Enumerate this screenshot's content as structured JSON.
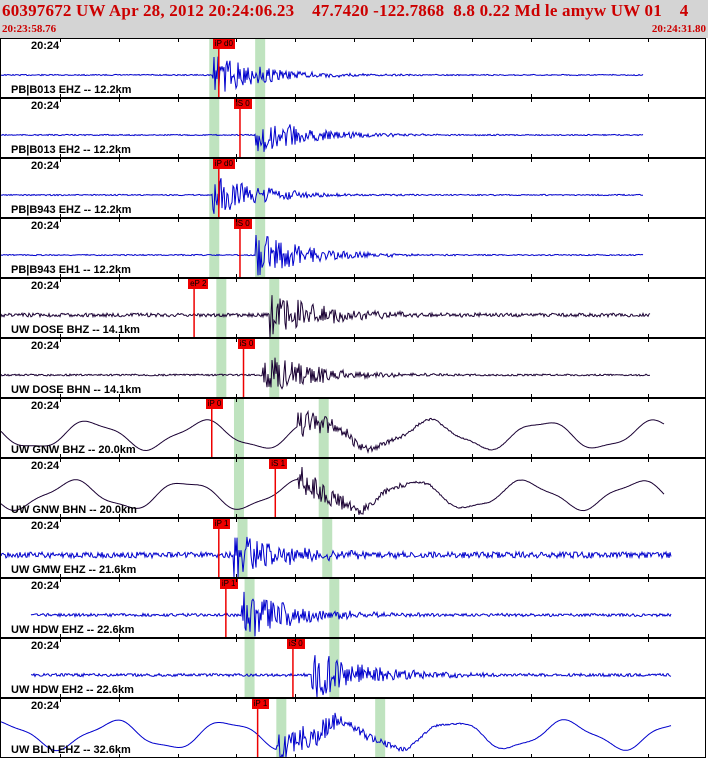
{
  "header": {
    "title": "60397672 UW Apr 28, 2012 20:24:06.23    47.7420 -122.7868  8.8 0.22 Md le amyw UW 01    4",
    "start_time": "20:23:58.76",
    "end_time": "20:24:31.80"
  },
  "colors": {
    "blue_trace": "#0000cc",
    "dark_trace": "#1a0033",
    "pick": "#ee0000",
    "window": "#bfe3bf"
  },
  "traces": [
    {
      "time": "20:24",
      "label": "PB|B013 EHZ -- 12.2km",
      "pick_label": "iP d0",
      "color": "blue",
      "pick_frac": 0.3,
      "onset": 0.3,
      "window": [
        0.295,
        0.36
      ],
      "amp": 0.35,
      "noise": 0.02,
      "end": 0.91,
      "style": "impulse"
    },
    {
      "time": "20:24",
      "label": "PB|B013 EH2 -- 12.2km",
      "pick_label": "iS 0",
      "color": "blue",
      "pick_frac": 0.33,
      "onset": 0.36,
      "window": [
        0.295,
        0.36
      ],
      "amp": 0.35,
      "noise": 0.02,
      "end": 0.91,
      "style": "impulse"
    },
    {
      "time": "20:24",
      "label": "PB|B943 EHZ -- 12.2km",
      "pick_label": "iP d0",
      "color": "blue",
      "pick_frac": 0.3,
      "onset": 0.3,
      "window": [
        0.295,
        0.36
      ],
      "amp": 0.35,
      "noise": 0.02,
      "end": 0.91,
      "style": "impulse"
    },
    {
      "time": "20:24",
      "label": "PB|B943 EH1 -- 12.2km",
      "pick_label": "iS 0",
      "color": "blue",
      "pick_frac": 0.33,
      "onset": 0.36,
      "window": [
        0.295,
        0.36
      ],
      "amp": 0.4,
      "noise": 0.02,
      "end": 0.91,
      "style": "impulse"
    },
    {
      "time": "20:24",
      "label": "UW DOSE BHZ -- 14.1km",
      "pick_label": "eP 2",
      "color": "dark",
      "pick_frac": 0.265,
      "onset": 0.38,
      "window": [
        0.305,
        0.38
      ],
      "amp": 0.45,
      "noise": 0.06,
      "end": 0.92,
      "style": "burst"
    },
    {
      "time": "20:24",
      "label": "UW DOSE BHN -- 14.1km",
      "pick_label": "iS 0",
      "color": "dark",
      "pick_frac": 0.335,
      "onset": 0.37,
      "window": [
        0.305,
        0.38
      ],
      "amp": 0.4,
      "noise": 0.03,
      "end": 0.92,
      "style": "burst"
    },
    {
      "time": "20:24",
      "label": "UW GNW BHZ -- 20.0km",
      "pick_label": "iP 0",
      "color": "dark",
      "pick_frac": 0.29,
      "onset": 0.42,
      "window": [
        0.33,
        0.45
      ],
      "amp": 0.25,
      "noise": 0.0,
      "end": 0.94,
      "style": "wave"
    },
    {
      "time": "20:24",
      "label": "UW GNW BHN -- 20.0km",
      "pick_label": "iS 1",
      "color": "dark",
      "pick_frac": 0.38,
      "onset": 0.42,
      "window": [
        0.33,
        0.45
      ],
      "amp": 0.3,
      "noise": 0.0,
      "end": 0.94,
      "style": "wave"
    },
    {
      "time": "20:24",
      "label": "UW GMW EHZ -- 21.6km",
      "pick_label": "iP 1",
      "color": "blue",
      "pick_frac": 0.3,
      "onset": 0.33,
      "window": [
        0.335,
        0.455
      ],
      "amp": 0.4,
      "noise": 0.1,
      "end": 0.95,
      "style": "noisy"
    },
    {
      "time": "20:24",
      "label": "UW HDW EHZ -- 22.6km",
      "pick_label": "iP 1",
      "color": "blue",
      "pick_frac": 0.31,
      "onset": 0.34,
      "window": [
        0.345,
        0.465
      ],
      "amp": 0.45,
      "noise": 0.05,
      "end": 0.95,
      "style": "noisy"
    },
    {
      "time": "20:24",
      "label": "UW HDW EH2 -- 22.6km",
      "pick_label": "iS 0",
      "color": "blue",
      "pick_frac": 0.405,
      "onset": 0.44,
      "window": [
        0.345,
        0.465
      ],
      "amp": 0.45,
      "noise": 0.05,
      "end": 0.95,
      "style": "noisy"
    },
    {
      "time": "20:24",
      "label": "UW BLN EHZ -- 32.6km",
      "pick_label": "iP 1",
      "color": "blue",
      "pick_frac": 0.355,
      "onset": 0.39,
      "window": [
        0.39,
        0.53
      ],
      "amp": 0.45,
      "noise": 0.0,
      "end": 0.95,
      "style": "wave"
    }
  ]
}
